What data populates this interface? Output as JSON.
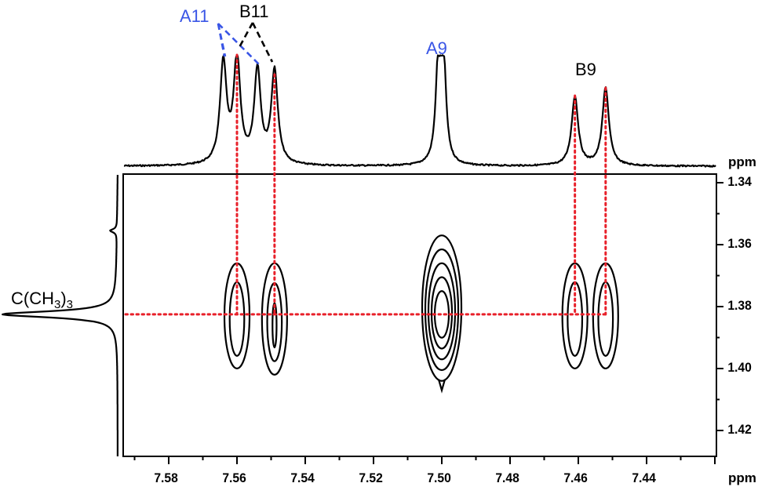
{
  "chart_data": {
    "type": "heatmap",
    "subtype": "2D NMR contour plot (COSY-type) with 1D projections",
    "title": "",
    "xlabel": "ppm",
    "ylabel": "ppm",
    "x_axis": {
      "unit": "ppm",
      "range": [
        7.593,
        7.42
      ],
      "reversed": true,
      "ticks": [
        "7.58",
        "7.56",
        "7.54",
        "7.52",
        "7.50",
        "7.48",
        "7.46",
        "7.44"
      ],
      "minor_tick_step": 0.01
    },
    "y_axis": {
      "unit": "ppm",
      "range": [
        1.332,
        1.428
      ],
      "position": "right",
      "ticks": [
        "1.34",
        "1.36",
        "1.38",
        "1.40",
        "1.42"
      ],
      "minor_tick_step": 0.01
    },
    "top_projection": {
      "peaks": [
        {
          "ppm": 7.564,
          "height": 0.93
        },
        {
          "ppm": 7.56,
          "height": 0.98
        },
        {
          "ppm": 7.554,
          "height": 0.86
        },
        {
          "ppm": 7.549,
          "height": 0.86
        },
        {
          "ppm": 7.501,
          "height": 0.93
        },
        {
          "ppm": 7.4995,
          "height": 0.93
        },
        {
          "ppm": 7.461,
          "height": 0.64
        },
        {
          "ppm": 7.452,
          "height": 0.72
        }
      ],
      "labels": [
        {
          "text": "A11",
          "color": "#3a56e6",
          "points_to": [
            7.564,
            7.554
          ]
        },
        {
          "text": "B11",
          "color": "#000000",
          "points_to": [
            7.56,
            7.549
          ]
        },
        {
          "text": "A9",
          "color": "#3a56e6",
          "points_to": [
            7.5
          ]
        },
        {
          "text": "B9",
          "color": "#000000",
          "points_to": [
            7.461,
            7.452
          ]
        }
      ]
    },
    "left_projection": {
      "label": "C(CH3)3",
      "peak_ppm": 1.3825
    },
    "contours": [
      {
        "x": 7.56,
        "y": 1.3825,
        "levels": 2,
        "y_extent": [
          1.366,
          1.4
        ]
      },
      {
        "x": 7.549,
        "y": 1.3825,
        "levels": 3,
        "y_extent": [
          1.366,
          1.402
        ]
      },
      {
        "x": 7.5,
        "y": 1.3825,
        "levels": 5,
        "y_extent": [
          1.357,
          1.404
        ]
      },
      {
        "x": 7.461,
        "y": 1.3825,
        "levels": 2,
        "y_extent": [
          1.366,
          1.4
        ]
      },
      {
        "x": 7.452,
        "y": 1.3825,
        "levels": 2,
        "y_extent": [
          1.366,
          1.4
        ]
      }
    ],
    "guide_lines": {
      "color": "#e8202a",
      "style": "dotted",
      "vertical_ppm": [
        7.56,
        7.549,
        7.461,
        7.452
      ],
      "horizontal_ppm": 1.3825
    },
    "grid": false,
    "legend": null
  },
  "labels": {
    "a11": "A11",
    "b11": "B11",
    "a9": "A9",
    "b9": "B9",
    "group_main": "C(CH",
    "group_sub1": "3",
    "group_mid": ")",
    "group_sub2": "3",
    "ppm_top": "ppm",
    "ppm_bottom": "ppm"
  },
  "x_ticks": [
    "7.58",
    "7.56",
    "7.54",
    "7.52",
    "7.50",
    "7.48",
    "7.46",
    "7.44"
  ],
  "y_ticks": [
    "1.34",
    "1.36",
    "1.38",
    "1.40",
    "1.42"
  ],
  "colors": {
    "blue_label": "#3a56e6",
    "black": "#000000",
    "red_guide": "#e8202a"
  }
}
